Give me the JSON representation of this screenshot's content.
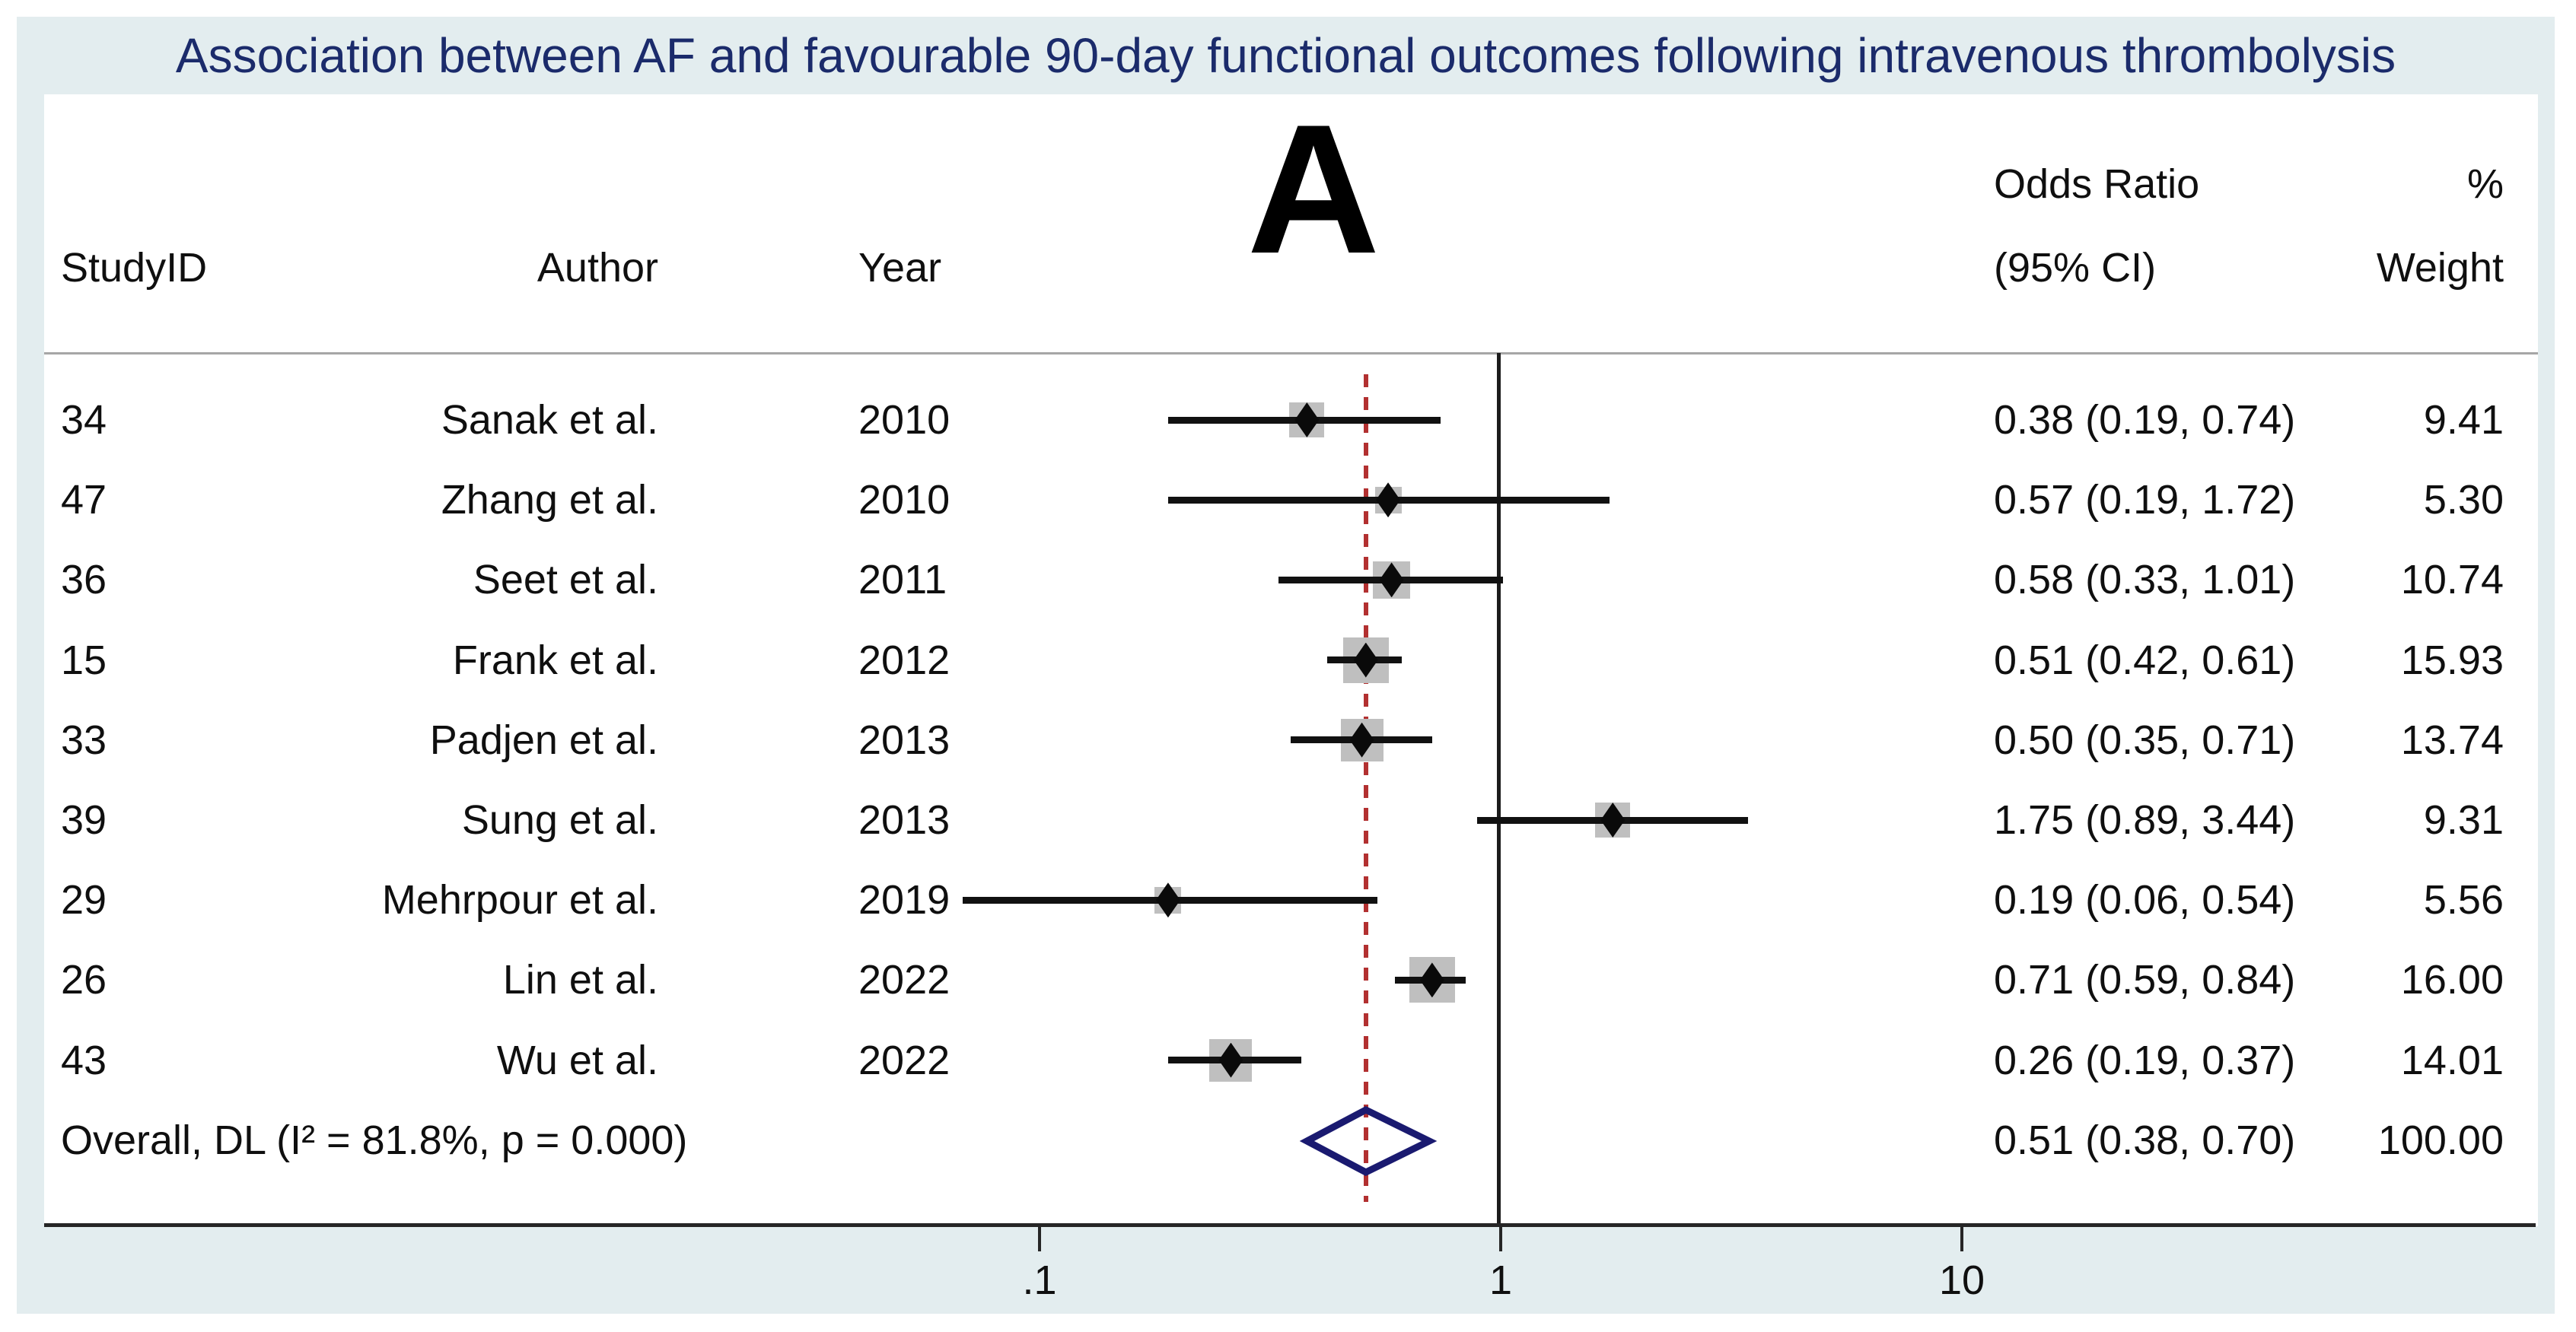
{
  "title": "Association between AF and favourable 90-day functional outcomes following intravenous thrombolysis",
  "panel_label": "A",
  "columns": {
    "study_id": "StudyID",
    "author": "Author",
    "year": "Year",
    "odds_ratio_line1": "Odds Ratio",
    "odds_ratio_line2": "(95% CI)",
    "weight_line1": "%",
    "weight_line2": "Weight"
  },
  "colors": {
    "panel_background": "#e3edef",
    "title_text": "#1b2b6b",
    "overall_diamond": "#1a1a70",
    "pooled_reference_line": "#b23030",
    "ci_line": "#111111",
    "weight_square": "#bfbfbf",
    "axis": "#262626"
  },
  "chart_data": {
    "type": "scatter",
    "subtype": "forest_plot_meta_analysis",
    "title": "Association between AF and favourable 90-day functional outcomes following intravenous thrombolysis",
    "x_axis": {
      "scale": "log10",
      "tick_labels": [
        ".1",
        "1",
        "10"
      ],
      "tick_values": [
        0.1,
        1,
        10
      ],
      "range": [
        0.05,
        20
      ]
    },
    "null_line_value": 1,
    "pooled_line_value": 0.51,
    "legend_position": "none",
    "grid": false,
    "studies": [
      {
        "study_id": "34",
        "author": "Sanak et al.",
        "year": "2010",
        "or": 0.38,
        "ci_low": 0.19,
        "ci_high": 0.74,
        "or_ci_label": "0.38 (0.19, 0.74)",
        "weight": 9.41,
        "weight_label": "9.41"
      },
      {
        "study_id": "47",
        "author": "Zhang et al.",
        "year": "2010",
        "or": 0.57,
        "ci_low": 0.19,
        "ci_high": 1.72,
        "or_ci_label": "0.57 (0.19, 1.72)",
        "weight": 5.3,
        "weight_label": "5.30"
      },
      {
        "study_id": "36",
        "author": "Seet et al.",
        "year": "2011",
        "or": 0.58,
        "ci_low": 0.33,
        "ci_high": 1.01,
        "or_ci_label": "0.58 (0.33, 1.01)",
        "weight": 10.74,
        "weight_label": "10.74"
      },
      {
        "study_id": "15",
        "author": "Frank et al.",
        "year": "2012",
        "or": 0.51,
        "ci_low": 0.42,
        "ci_high": 0.61,
        "or_ci_label": "0.51 (0.42, 0.61)",
        "weight": 15.93,
        "weight_label": "15.93"
      },
      {
        "study_id": "33",
        "author": "Padjen et al.",
        "year": "2013",
        "or": 0.5,
        "ci_low": 0.35,
        "ci_high": 0.71,
        "or_ci_label": "0.50 (0.35, 0.71)",
        "weight": 13.74,
        "weight_label": "13.74"
      },
      {
        "study_id": "39",
        "author": "Sung et al.",
        "year": "2013",
        "or": 1.75,
        "ci_low": 0.89,
        "ci_high": 3.44,
        "or_ci_label": "1.75 (0.89, 3.44)",
        "weight": 9.31,
        "weight_label": "9.31"
      },
      {
        "study_id": "29",
        "author": "Mehrpour et al.",
        "year": "2019",
        "or": 0.19,
        "ci_low": 0.06,
        "ci_high": 0.54,
        "or_ci_label": "0.19 (0.06, 0.54)",
        "weight": 5.56,
        "weight_label": "5.56"
      },
      {
        "study_id": "26",
        "author": "Lin et al.",
        "year": "2022",
        "or": 0.71,
        "ci_low": 0.59,
        "ci_high": 0.84,
        "or_ci_label": "0.71 (0.59, 0.84)",
        "weight": 16.0,
        "weight_label": "16.00"
      },
      {
        "study_id": "43",
        "author": "Wu et al.",
        "year": "2022",
        "or": 0.26,
        "ci_low": 0.19,
        "ci_high": 0.37,
        "or_ci_label": "0.26 (0.19, 0.37)",
        "weight": 14.01,
        "weight_label": "14.01"
      }
    ],
    "overall": {
      "label": "Overall, DL (I² = 81.8%, p = 0.000)",
      "or": 0.51,
      "ci_low": 0.38,
      "ci_high": 0.7,
      "or_ci_label": "0.51 (0.38, 0.70)",
      "weight_label": "100.00"
    }
  }
}
